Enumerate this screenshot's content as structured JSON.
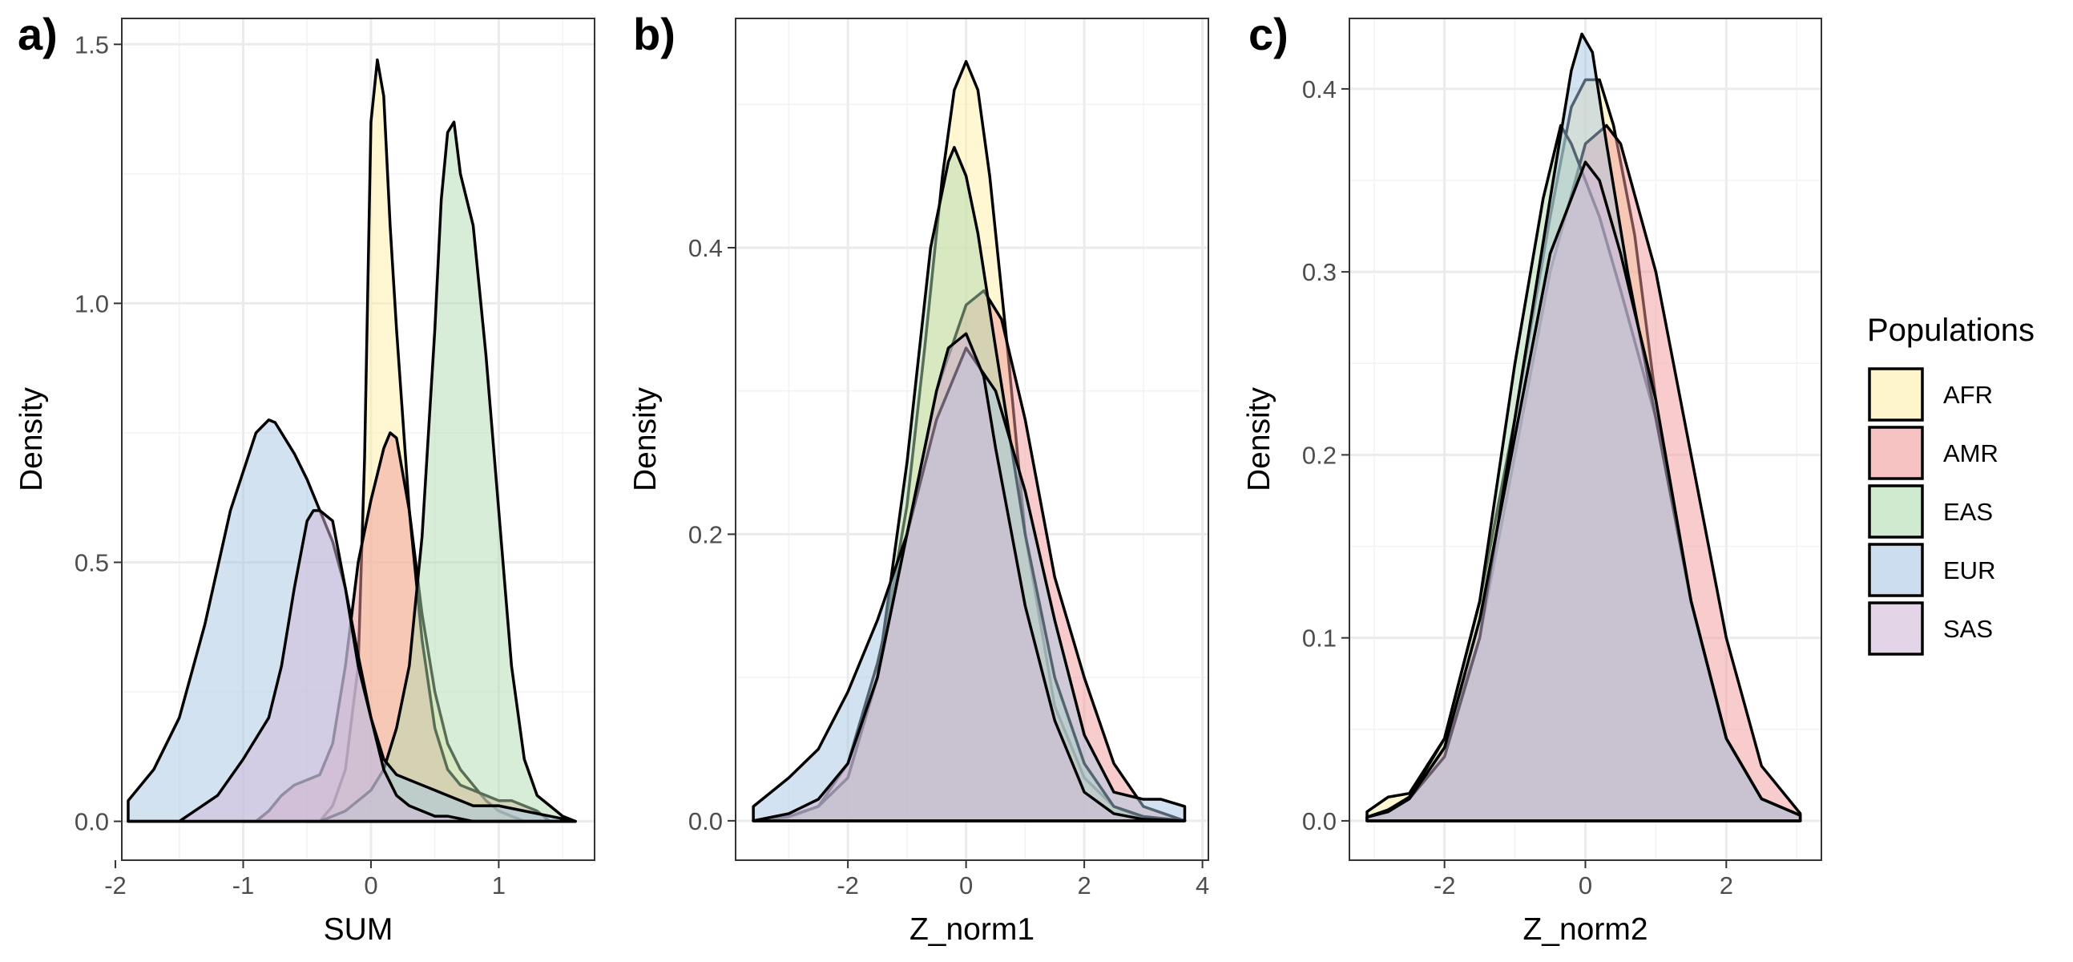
{
  "chart_data": [
    {
      "type": "area",
      "tag": "a)",
      "xlabel": "SUM",
      "ylabel": "Density",
      "xlim": [
        -1.95,
        1.75
      ],
      "ylim": [
        -0.075,
        1.55
      ],
      "xticks": [
        -2,
        -1,
        0,
        1
      ],
      "yticks": [
        0.0,
        0.5,
        1.0,
        1.5
      ],
      "tick_format": 1,
      "grid": true,
      "series": [
        {
          "name": "AFR",
          "x": [
            -0.5,
            -0.4,
            -0.3,
            -0.2,
            -0.1,
            -0.05,
            0.0,
            0.05,
            0.1,
            0.15,
            0.2,
            0.3,
            0.4,
            0.5,
            0.6,
            0.7,
            0.8,
            0.9,
            1.0,
            1.1,
            1.2
          ],
          "y": [
            0.0,
            0.0,
            0.03,
            0.1,
            0.3,
            0.7,
            1.35,
            1.47,
            1.4,
            1.15,
            0.95,
            0.6,
            0.4,
            0.25,
            0.15,
            0.1,
            0.07,
            0.04,
            0.02,
            0.01,
            0.0
          ]
        },
        {
          "name": "AMR",
          "x": [
            -1.0,
            -0.9,
            -0.8,
            -0.7,
            -0.6,
            -0.5,
            -0.4,
            -0.3,
            -0.2,
            -0.1,
            0.0,
            0.1,
            0.15,
            0.2,
            0.3,
            0.4,
            0.5,
            0.6,
            0.7,
            0.8,
            0.9,
            1.0,
            1.1,
            1.2,
            1.3,
            1.4
          ],
          "y": [
            0.0,
            0.0,
            0.02,
            0.05,
            0.07,
            0.08,
            0.09,
            0.15,
            0.3,
            0.5,
            0.62,
            0.72,
            0.75,
            0.74,
            0.6,
            0.35,
            0.18,
            0.1,
            0.07,
            0.06,
            0.05,
            0.04,
            0.04,
            0.03,
            0.02,
            0.0
          ]
        },
        {
          "name": "EAS",
          "x": [
            -0.5,
            -0.4,
            -0.3,
            -0.2,
            -0.1,
            0.0,
            0.1,
            0.2,
            0.3,
            0.4,
            0.5,
            0.55,
            0.6,
            0.65,
            0.7,
            0.8,
            0.9,
            1.0,
            1.1,
            1.2,
            1.3,
            1.4,
            1.5,
            1.6
          ],
          "y": [
            0.0,
            0.0,
            0.01,
            0.02,
            0.04,
            0.06,
            0.1,
            0.18,
            0.3,
            0.55,
            0.95,
            1.2,
            1.33,
            1.35,
            1.25,
            1.15,
            0.9,
            0.6,
            0.3,
            0.12,
            0.05,
            0.03,
            0.01,
            0.0
          ]
        },
        {
          "name": "EUR",
          "x": [
            -1.9,
            -1.7,
            -1.5,
            -1.3,
            -1.1,
            -0.9,
            -0.8,
            -0.75,
            -0.7,
            -0.6,
            -0.5,
            -0.4,
            -0.3,
            -0.2,
            -0.1,
            0.0,
            0.1,
            0.2,
            0.3,
            0.4,
            0.5,
            0.6,
            0.8,
            1.0,
            1.2,
            1.4,
            1.6
          ],
          "y": [
            0.04,
            0.1,
            0.2,
            0.38,
            0.6,
            0.75,
            0.775,
            0.77,
            0.75,
            0.71,
            0.66,
            0.6,
            0.54,
            0.45,
            0.32,
            0.2,
            0.12,
            0.09,
            0.08,
            0.07,
            0.06,
            0.05,
            0.03,
            0.03,
            0.02,
            0.01,
            0.0
          ]
        },
        {
          "name": "SAS",
          "x": [
            -1.9,
            -1.5,
            -1.2,
            -1.0,
            -0.8,
            -0.7,
            -0.6,
            -0.5,
            -0.45,
            -0.4,
            -0.3,
            -0.2,
            -0.1,
            0.0,
            0.1,
            0.2,
            0.3,
            0.4,
            0.5,
            0.6,
            0.8,
            1.0,
            1.2,
            1.4,
            1.6
          ],
          "y": [
            0.0,
            0.0,
            0.05,
            0.12,
            0.2,
            0.3,
            0.45,
            0.58,
            0.6,
            0.6,
            0.58,
            0.45,
            0.3,
            0.2,
            0.1,
            0.05,
            0.03,
            0.02,
            0.01,
            0.01,
            0.0,
            0.0,
            0.0,
            0.0,
            0.0
          ]
        }
      ]
    },
    {
      "type": "area",
      "tag": "b)",
      "xlabel": "Z_norm1",
      "ylabel": "Density",
      "xlim": [
        -3.9,
        4.1
      ],
      "ylim": [
        -0.0275,
        0.56
      ],
      "xticks": [
        -2,
        0,
        2,
        4
      ],
      "yticks": [
        0.0,
        0.2,
        0.4
      ],
      "tick_format": 1,
      "grid": true,
      "series": [
        {
          "name": "AFR",
          "x": [
            -3.6,
            -3.0,
            -2.5,
            -2.0,
            -1.5,
            -1.0,
            -0.7,
            -0.4,
            -0.2,
            0.0,
            0.2,
            0.4,
            0.7,
            1.0,
            1.5,
            2.0,
            2.5,
            3.0,
            3.7
          ],
          "y": [
            0.0,
            0.002,
            0.01,
            0.03,
            0.1,
            0.22,
            0.33,
            0.45,
            0.51,
            0.53,
            0.51,
            0.45,
            0.33,
            0.2,
            0.08,
            0.03,
            0.01,
            0.002,
            0.0
          ]
        },
        {
          "name": "AMR",
          "x": [
            -3.6,
            -3.0,
            -2.5,
            -2.0,
            -1.5,
            -1.0,
            -0.5,
            0.0,
            0.3,
            0.6,
            1.0,
            1.5,
            2.0,
            2.5,
            3.0,
            3.7
          ],
          "y": [
            0.0,
            0.003,
            0.01,
            0.04,
            0.11,
            0.2,
            0.3,
            0.36,
            0.37,
            0.35,
            0.28,
            0.17,
            0.1,
            0.04,
            0.01,
            0.0
          ]
        },
        {
          "name": "EAS",
          "x": [
            -3.6,
            -3.0,
            -2.5,
            -2.0,
            -1.5,
            -1.0,
            -0.6,
            -0.3,
            -0.2,
            0.0,
            0.2,
            0.5,
            1.0,
            1.5,
            2.0,
            2.5,
            3.0,
            3.7
          ],
          "y": [
            0.0,
            0.003,
            0.01,
            0.03,
            0.1,
            0.25,
            0.4,
            0.46,
            0.47,
            0.45,
            0.41,
            0.33,
            0.2,
            0.1,
            0.04,
            0.01,
            0.003,
            0.0
          ]
        },
        {
          "name": "EUR",
          "x": [
            -3.6,
            -3.0,
            -2.5,
            -2.0,
            -1.5,
            -1.0,
            -0.5,
            0.0,
            0.5,
            1.0,
            1.5,
            2.0,
            2.5,
            3.0,
            3.3,
            3.7
          ],
          "y": [
            0.01,
            0.03,
            0.05,
            0.09,
            0.14,
            0.2,
            0.28,
            0.33,
            0.3,
            0.23,
            0.14,
            0.06,
            0.02,
            0.015,
            0.015,
            0.01
          ]
        },
        {
          "name": "SAS",
          "x": [
            -3.6,
            -3.0,
            -2.5,
            -2.0,
            -1.5,
            -1.0,
            -0.5,
            -0.3,
            0.0,
            0.3,
            0.5,
            1.0,
            1.5,
            2.0,
            2.5,
            3.0,
            3.7
          ],
          "y": [
            0.0,
            0.005,
            0.015,
            0.04,
            0.1,
            0.2,
            0.3,
            0.33,
            0.34,
            0.31,
            0.26,
            0.15,
            0.07,
            0.02,
            0.005,
            0.001,
            0.0
          ]
        }
      ]
    },
    {
      "type": "area",
      "tag": "c)",
      "xlabel": "Z_norm2",
      "ylabel": "Density",
      "xlim": [
        -3.35,
        3.35
      ],
      "ylim": [
        -0.0215,
        0.4385
      ],
      "xticks": [
        -2,
        0,
        2
      ],
      "yticks": [
        0.0,
        0.1,
        0.2,
        0.3,
        0.4
      ],
      "tick_format": 1,
      "grid": true,
      "series": [
        {
          "name": "AFR",
          "x": [
            -3.1,
            -2.8,
            -2.5,
            -2.0,
            -1.5,
            -1.0,
            -0.5,
            -0.2,
            0.0,
            0.2,
            0.4,
            0.7,
            1.0,
            1.5,
            2.0,
            2.5,
            3.05
          ],
          "y": [
            0.005,
            0.013,
            0.015,
            0.045,
            0.12,
            0.22,
            0.33,
            0.39,
            0.405,
            0.405,
            0.38,
            0.32,
            0.23,
            0.12,
            0.045,
            0.012,
            0.003
          ]
        },
        {
          "name": "AMR",
          "x": [
            -3.1,
            -2.8,
            -2.5,
            -2.0,
            -1.5,
            -1.0,
            -0.5,
            0.0,
            0.3,
            0.5,
            1.0,
            1.5,
            2.0,
            2.5,
            3.05
          ],
          "y": [
            0.002,
            0.006,
            0.012,
            0.04,
            0.1,
            0.2,
            0.3,
            0.37,
            0.38,
            0.37,
            0.3,
            0.2,
            0.1,
            0.03,
            0.004
          ]
        },
        {
          "name": "EAS",
          "x": [
            -3.1,
            -2.8,
            -2.5,
            -2.0,
            -1.5,
            -1.0,
            -0.6,
            -0.35,
            -0.2,
            0.0,
            0.2,
            0.5,
            1.0,
            1.5,
            2.0,
            2.5,
            3.05
          ],
          "y": [
            0.002,
            0.006,
            0.013,
            0.045,
            0.12,
            0.25,
            0.34,
            0.38,
            0.37,
            0.35,
            0.33,
            0.29,
            0.22,
            0.12,
            0.045,
            0.012,
            0.003
          ]
        },
        {
          "name": "EUR",
          "x": [
            -3.1,
            -2.8,
            -2.5,
            -2.0,
            -1.5,
            -1.0,
            -0.5,
            -0.2,
            -0.05,
            0.1,
            0.3,
            0.6,
            1.0,
            1.5,
            2.0,
            2.5,
            3.05
          ],
          "y": [
            0.002,
            0.005,
            0.012,
            0.035,
            0.1,
            0.22,
            0.34,
            0.41,
            0.43,
            0.42,
            0.37,
            0.3,
            0.22,
            0.12,
            0.045,
            0.012,
            0.003
          ]
        },
        {
          "name": "SAS",
          "x": [
            -3.1,
            -2.8,
            -2.5,
            -2.0,
            -1.5,
            -1.0,
            -0.5,
            0.0,
            0.2,
            0.5,
            1.0,
            1.5,
            2.0,
            2.5,
            3.05
          ],
          "y": [
            0.002,
            0.005,
            0.012,
            0.04,
            0.11,
            0.21,
            0.31,
            0.36,
            0.35,
            0.31,
            0.23,
            0.12,
            0.045,
            0.012,
            0.003
          ]
        }
      ]
    }
  ],
  "legend": {
    "title": "Populations",
    "placement": "right",
    "items": [
      {
        "name": "AFR",
        "color": "#fdf0a6"
      },
      {
        "name": "AMR",
        "color": "#f29a9a"
      },
      {
        "name": "EAS",
        "color": "#b1dcb0"
      },
      {
        "name": "EUR",
        "color": "#a8c6e2"
      },
      {
        "name": "SAS",
        "color": "#d2b7d8"
      }
    ]
  }
}
